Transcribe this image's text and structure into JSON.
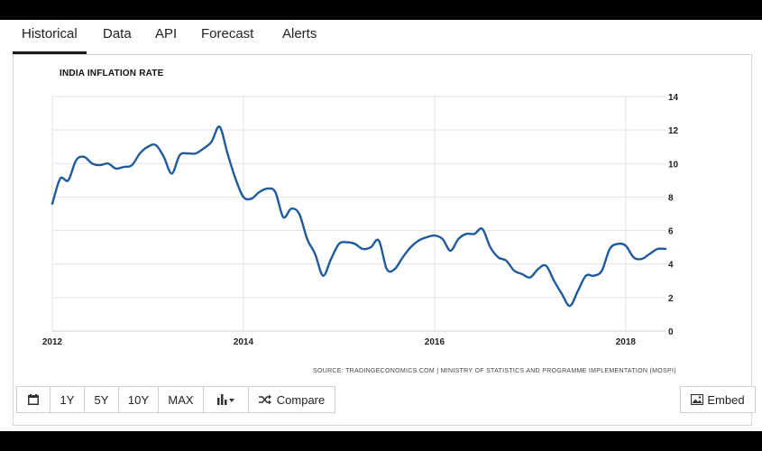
{
  "tabs": [
    {
      "label": "Historical",
      "active": true
    },
    {
      "label": "Data"
    },
    {
      "label": "API"
    },
    {
      "label": "Forecast"
    },
    {
      "label": "Alerts"
    }
  ],
  "toolbar": {
    "buttons": [
      "1Y",
      "5Y",
      "10Y",
      "MAX"
    ],
    "compare_label": "Compare",
    "embed_label": "Embed",
    "calendar_icon": "calendar-icon",
    "chart_type_icon": "bar-chart-icon",
    "compare_icon": "shuffle-icon",
    "embed_icon": "image-icon"
  },
  "colors": {
    "line": "#1f5a9c",
    "grid": "#e3e3e3"
  },
  "chart_data": {
    "type": "line",
    "title": "INDIA INFLATION RATE",
    "source": "SOURCE: TRADINGECONOMICS.COM | MINISTRY OF STATISTICS AND PROGRAMME IMPLEMENTATION (MOSPI)",
    "xlabel": "",
    "ylabel": "",
    "ylim": [
      0,
      14
    ],
    "xlim": [
      "2012-01",
      "2018-06"
    ],
    "x_ticks": [
      "2012",
      "2014",
      "2016",
      "2018"
    ],
    "y_ticks": [
      "0",
      "2",
      "4",
      "6",
      "8",
      "10",
      "12",
      "14"
    ],
    "y_axis_side": "right",
    "grid": true,
    "series": [
      {
        "x": [
          "2012-01",
          "2012-02",
          "2012-03",
          "2012-04",
          "2012-05",
          "2012-06",
          "2012-07",
          "2012-08",
          "2012-09",
          "2012-10",
          "2012-11",
          "2012-12",
          "2013-01",
          "2013-02",
          "2013-03",
          "2013-04",
          "2013-05",
          "2013-06",
          "2013-07",
          "2013-08",
          "2013-09",
          "2013-10",
          "2013-11",
          "2013-12",
          "2014-01",
          "2014-02",
          "2014-03",
          "2014-04",
          "2014-05",
          "2014-06",
          "2014-07",
          "2014-08",
          "2014-09",
          "2014-10",
          "2014-11",
          "2014-12",
          "2015-01",
          "2015-02",
          "2015-03",
          "2015-04",
          "2015-05",
          "2015-06",
          "2015-07",
          "2015-08",
          "2015-09",
          "2015-10",
          "2015-11",
          "2015-12",
          "2016-01",
          "2016-02",
          "2016-03",
          "2016-04",
          "2016-05",
          "2016-06",
          "2016-07",
          "2016-08",
          "2016-09",
          "2016-10",
          "2016-11",
          "2016-12",
          "2017-01",
          "2017-02",
          "2017-03",
          "2017-04",
          "2017-05",
          "2017-06",
          "2017-07",
          "2017-08",
          "2017-09",
          "2017-10",
          "2017-11",
          "2017-12",
          "2018-01",
          "2018-02",
          "2018-03",
          "2018-04",
          "2018-05",
          "2018-06"
        ],
        "values": [
          7.6,
          9.1,
          9.0,
          10.2,
          10.4,
          10.0,
          9.9,
          10.0,
          9.7,
          9.8,
          9.9,
          10.6,
          11.0,
          11.1,
          10.4,
          9.4,
          10.5,
          10.6,
          10.6,
          10.9,
          11.3,
          12.2,
          10.6,
          9.1,
          8.0,
          7.9,
          8.3,
          8.5,
          8.3,
          6.8,
          7.3,
          7.0,
          5.5,
          4.6,
          3.3,
          4.3,
          5.2,
          5.3,
          5.2,
          4.9,
          5.0,
          5.4,
          3.7,
          3.7,
          4.4,
          5.0,
          5.4,
          5.6,
          5.7,
          5.5,
          4.8,
          5.5,
          5.8,
          5.8,
          6.1,
          5.0,
          4.4,
          4.2,
          3.6,
          3.4,
          3.2,
          3.7,
          3.9,
          3.0,
          2.2,
          1.5,
          2.4,
          3.3,
          3.3,
          3.6,
          4.9,
          5.2,
          5.1,
          4.4,
          4.3,
          4.6,
          4.9,
          4.9
        ]
      }
    ]
  }
}
